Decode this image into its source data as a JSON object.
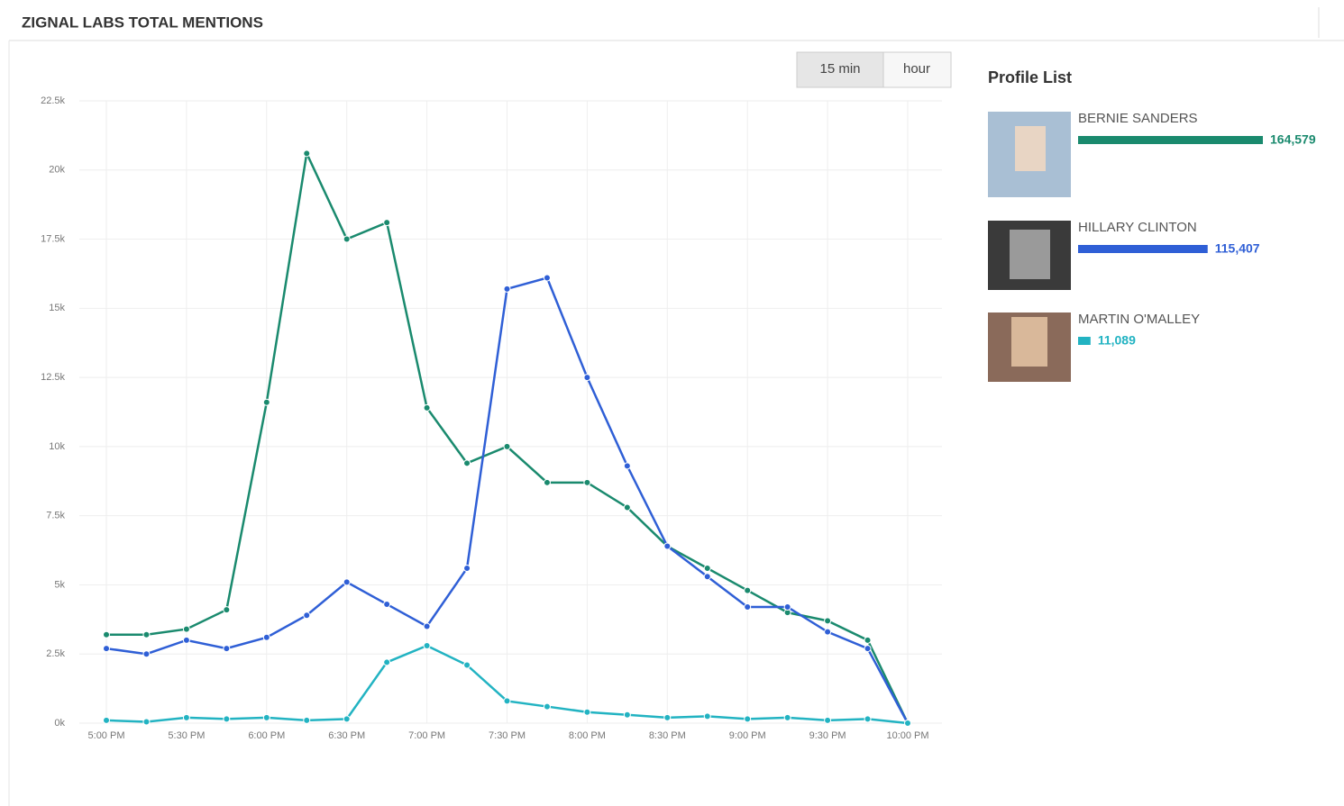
{
  "header": {
    "title": "ZIGNAL LABS TOTAL MENTIONS"
  },
  "controls": [
    "15 min",
    "hour"
  ],
  "chart_data": {
    "type": "line",
    "categories": [
      "5:00 PM",
      null,
      "5:30 PM",
      null,
      "6:00 PM",
      null,
      "6:30 PM",
      null,
      "7:00 PM",
      null,
      "7:30 PM",
      null,
      "8:00 PM",
      null,
      "8:30 PM",
      null,
      "9:00 PM",
      null,
      "9:30 PM",
      null,
      "10:00 PM"
    ],
    "series": [
      {
        "color": "#1a8a6e",
        "values": [
          3200,
          3200,
          3400,
          4100,
          11600,
          20600,
          17500,
          18100,
          11400,
          9400,
          10000,
          8700,
          8700,
          7800,
          6400,
          5600,
          4800,
          4000,
          3700,
          3000,
          0
        ]
      },
      {
        "color": "#2f5fd6",
        "values": [
          2700,
          2500,
          3000,
          2700,
          3100,
          3900,
          5100,
          4300,
          3500,
          5600,
          15700,
          16100,
          12500,
          9300,
          6400,
          5300,
          4200,
          4200,
          3300,
          2700,
          0
        ]
      },
      {
        "color": "#22b3c2",
        "values": [
          100,
          50,
          200,
          150,
          200,
          100,
          150,
          2200,
          2800,
          2100,
          800,
          600,
          400,
          300,
          200,
          250,
          150,
          200,
          100,
          150,
          0
        ]
      }
    ],
    "ylim": [
      0,
      22500
    ],
    "yticks": [
      {
        "value": 0,
        "label": "0k"
      },
      {
        "value": 2500,
        "label": "2.5k"
      },
      {
        "value": 5000,
        "label": "5k"
      },
      {
        "value": 7500,
        "label": "7.5k"
      },
      {
        "value": 10000,
        "label": "10k"
      },
      {
        "value": 12500,
        "label": "12.5k"
      },
      {
        "value": 15000,
        "label": "15k"
      },
      {
        "value": 17500,
        "label": "17.5k"
      },
      {
        "value": 20000,
        "label": "20k"
      },
      {
        "value": 22500,
        "label": "22.5k"
      }
    ],
    "grid": true
  },
  "profile_list": {
    "title": "Profile List",
    "names": [
      "BERNIE SANDERS",
      "HILLARY CLINTON",
      "MARTIN O'MALLEY"
    ],
    "values": [
      164579,
      115407,
      11089
    ],
    "value_labels": [
      "164,579",
      "115,407",
      "11,089"
    ],
    "colors": [
      "#1a8a6e",
      "#2f5fd6",
      "#22b3c2"
    ]
  }
}
